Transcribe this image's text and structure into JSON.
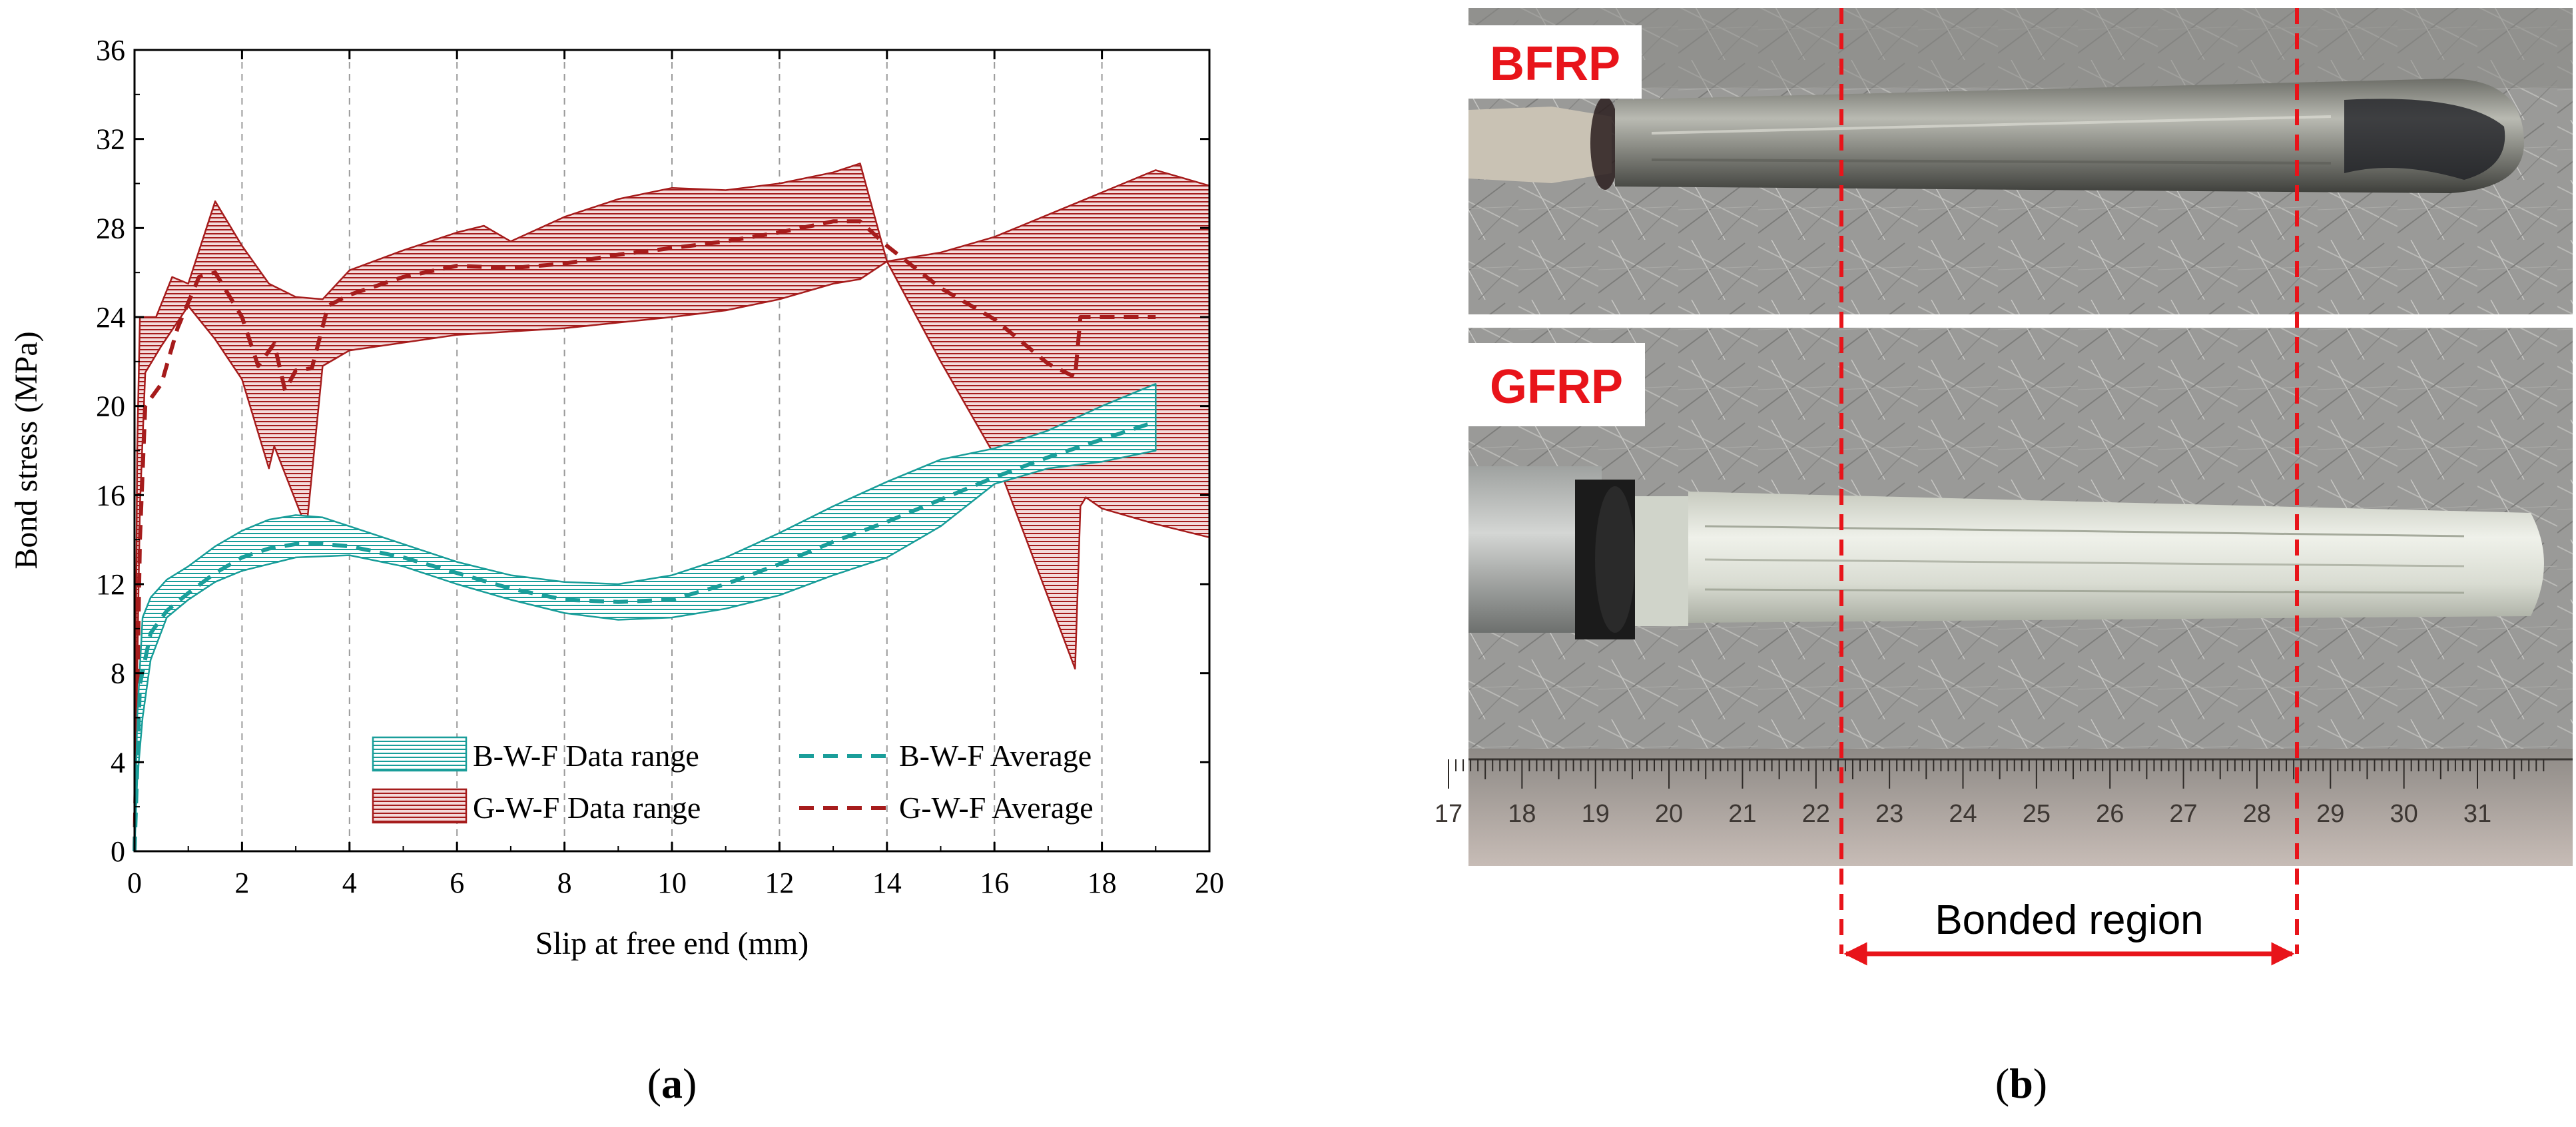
{
  "chart_data": {
    "type": "area",
    "xlabel": "Slip at free end (mm)",
    "ylabel": "Bond stress (MPa)",
    "xlim": [
      0,
      20
    ],
    "ylim": [
      0,
      36
    ],
    "xticks": [
      0,
      2,
      4,
      6,
      8,
      10,
      12,
      14,
      16,
      18,
      20
    ],
    "yticks": [
      0,
      4,
      8,
      12,
      16,
      20,
      24,
      28,
      32,
      36
    ],
    "grid": "vertical dashed",
    "legend_position": "bottom-right",
    "series": [
      {
        "name": "B-W-F Data range",
        "kind": "range",
        "color": "#1a9e9a",
        "upper": [
          [
            0,
            0
          ],
          [
            0.05,
            6
          ],
          [
            0.15,
            10.5
          ],
          [
            0.3,
            11.4
          ],
          [
            0.6,
            12.2
          ],
          [
            1,
            12.8
          ],
          [
            1.5,
            13.7
          ],
          [
            2,
            14.4
          ],
          [
            2.5,
            14.9
          ],
          [
            3,
            15.1
          ],
          [
            3.5,
            15.0
          ],
          [
            4,
            14.6
          ],
          [
            5,
            13.8
          ],
          [
            6,
            13.0
          ],
          [
            7,
            12.4
          ],
          [
            8,
            12.1
          ],
          [
            9,
            12.0
          ],
          [
            10,
            12.4
          ],
          [
            11,
            13.2
          ],
          [
            12,
            14.3
          ],
          [
            13,
            15.5
          ],
          [
            14,
            16.6
          ],
          [
            15,
            17.6
          ],
          [
            16,
            18.1
          ],
          [
            17,
            18.9
          ],
          [
            18,
            20.0
          ],
          [
            19,
            21.0
          ]
        ],
        "lower": [
          [
            19,
            18.0
          ],
          [
            18,
            17.5
          ],
          [
            17,
            17.2
          ],
          [
            16,
            16.5
          ],
          [
            15,
            14.6
          ],
          [
            14,
            13.2
          ],
          [
            13,
            12.4
          ],
          [
            12,
            11.5
          ],
          [
            11,
            10.9
          ],
          [
            10,
            10.5
          ],
          [
            9,
            10.4
          ],
          [
            8,
            10.7
          ],
          [
            7,
            11.3
          ],
          [
            6,
            12.0
          ],
          [
            5,
            12.8
          ],
          [
            4,
            13.3
          ],
          [
            3,
            13.2
          ],
          [
            2,
            12.6
          ],
          [
            1.5,
            12.1
          ],
          [
            1,
            11.3
          ],
          [
            0.6,
            10.5
          ],
          [
            0.3,
            8.6
          ],
          [
            0.15,
            6.0
          ],
          [
            0.05,
            3.2
          ],
          [
            0,
            0
          ]
        ]
      },
      {
        "name": "B-W-F Average",
        "kind": "line",
        "color": "#1a9e9a",
        "points": [
          [
            0,
            0
          ],
          [
            0.1,
            7.5
          ],
          [
            0.3,
            9.8
          ],
          [
            0.6,
            10.8
          ],
          [
            1,
            11.6
          ],
          [
            1.5,
            12.5
          ],
          [
            2,
            13.2
          ],
          [
            2.5,
            13.6
          ],
          [
            3,
            13.8
          ],
          [
            3.5,
            13.8
          ],
          [
            4,
            13.7
          ],
          [
            5,
            13.2
          ],
          [
            6,
            12.5
          ],
          [
            7,
            11.8
          ],
          [
            8,
            11.3
          ],
          [
            9,
            11.2
          ],
          [
            10,
            11.3
          ],
          [
            11,
            12.0
          ],
          [
            12,
            12.9
          ],
          [
            13,
            13.9
          ],
          [
            14,
            14.8
          ],
          [
            15,
            15.8
          ],
          [
            16,
            16.8
          ],
          [
            17,
            17.7
          ],
          [
            18,
            18.5
          ],
          [
            19,
            19.3
          ]
        ]
      },
      {
        "name": "G-W-F Data range",
        "kind": "range",
        "color": "#a61c1c",
        "upper": [
          [
            0,
            0
          ],
          [
            0.05,
            18
          ],
          [
            0.1,
            24
          ],
          [
            0.4,
            24
          ],
          [
            0.7,
            25.8
          ],
          [
            1,
            25.5
          ],
          [
            1.5,
            29.2
          ],
          [
            2,
            27.2
          ],
          [
            2.5,
            25.5
          ],
          [
            3,
            24.9
          ],
          [
            3.5,
            24.8
          ],
          [
            4,
            26.1
          ],
          [
            5,
            27.0
          ],
          [
            6,
            27.8
          ],
          [
            6.5,
            28.1
          ],
          [
            7,
            27.4
          ],
          [
            8,
            28.5
          ],
          [
            9,
            29.3
          ],
          [
            10,
            29.8
          ],
          [
            11,
            29.7
          ],
          [
            12,
            30.0
          ],
          [
            13,
            30.5
          ],
          [
            13.5,
            30.9
          ],
          [
            14,
            26.5
          ],
          [
            15,
            26.9
          ],
          [
            16,
            27.6
          ],
          [
            17,
            28.6
          ],
          [
            18,
            29.6
          ],
          [
            19,
            30.6
          ],
          [
            20,
            29.9
          ]
        ],
        "lower": [
          [
            20,
            14.1
          ],
          [
            19,
            14.7
          ],
          [
            18,
            15.4
          ],
          [
            17.7,
            15.9
          ],
          [
            17.6,
            15.5
          ],
          [
            17.5,
            8.2
          ],
          [
            16,
            17.8
          ],
          [
            15,
            22.0
          ],
          [
            14,
            26.5
          ],
          [
            13.5,
            25.7
          ],
          [
            13,
            25.5
          ],
          [
            12,
            24.8
          ],
          [
            11,
            24.3
          ],
          [
            10,
            24.0
          ],
          [
            8,
            23.5
          ],
          [
            6,
            23.2
          ],
          [
            4,
            22.5
          ],
          [
            3.5,
            21.8
          ],
          [
            3.2,
            14.5
          ],
          [
            2.6,
            18.2
          ],
          [
            2.5,
            17.2
          ],
          [
            2,
            21.2
          ],
          [
            1.5,
            23.0
          ],
          [
            1,
            24.5
          ],
          [
            0.5,
            22.7
          ],
          [
            0.2,
            21.5
          ],
          [
            0.1,
            15.5
          ],
          [
            0.05,
            8
          ],
          [
            0,
            0
          ]
        ]
      },
      {
        "name": "G-W-F Average",
        "kind": "line",
        "color": "#a61c1c",
        "points": [
          [
            0,
            0
          ],
          [
            0.1,
            14
          ],
          [
            0.2,
            20
          ],
          [
            0.5,
            21
          ],
          [
            0.8,
            23.5
          ],
          [
            1.2,
            25.8
          ],
          [
            1.5,
            26
          ],
          [
            2,
            24
          ],
          [
            2.3,
            21.8
          ],
          [
            2.6,
            22.8
          ],
          [
            2.8,
            20.7
          ],
          [
            3,
            21.6
          ],
          [
            3.3,
            21.7
          ],
          [
            3.6,
            24.5
          ],
          [
            4,
            25
          ],
          [
            5,
            25.8
          ],
          [
            6,
            26.3
          ],
          [
            7,
            26.2
          ],
          [
            8,
            26.4
          ],
          [
            9,
            26.8
          ],
          [
            10,
            27.1
          ],
          [
            11,
            27.4
          ],
          [
            12,
            27.8
          ],
          [
            13,
            28.3
          ],
          [
            13.5,
            28.3
          ],
          [
            14,
            27.2
          ],
          [
            15,
            25.3
          ],
          [
            16,
            23.9
          ],
          [
            17,
            21.9
          ],
          [
            17.5,
            21.3
          ],
          [
            17.6,
            24.0
          ],
          [
            18,
            24.0
          ],
          [
            19,
            24.0
          ]
        ]
      }
    ]
  },
  "panel_a": {
    "caption": "a"
  },
  "panel_b": {
    "caption": "b",
    "top_label": "BFRP",
    "bottom_label": "GFRP",
    "region_label": "Bonded region",
    "ruler_ticks": [
      "17",
      "18",
      "19",
      "20",
      "21",
      "22",
      "23",
      "24",
      "25",
      "26",
      "27",
      "28",
      "29",
      "30",
      "31"
    ]
  },
  "colors": {
    "bwf": "#1a9e9a",
    "gwf": "#a61c1c",
    "annotation": "#e8141a"
  }
}
